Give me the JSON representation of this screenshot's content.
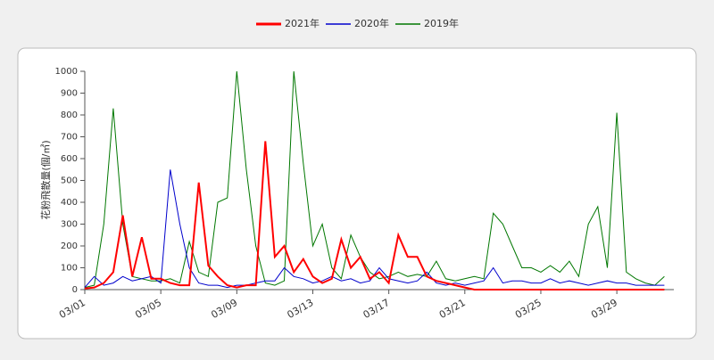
{
  "chart_data": {
    "type": "line",
    "y_label": "花粉飛散量(個/㎥)",
    "categories": [
      "03/01",
      null,
      null,
      null,
      null,
      null,
      null,
      null,
      "03/05",
      null,
      null,
      null,
      null,
      null,
      null,
      null,
      "03/09",
      null,
      null,
      null,
      null,
      null,
      null,
      null,
      "03/13",
      null,
      null,
      null,
      null,
      null,
      null,
      null,
      "03/17",
      null,
      null,
      null,
      null,
      null,
      null,
      null,
      "03/21",
      null,
      null,
      null,
      null,
      null,
      null,
      null,
      "03/25",
      null,
      null,
      null,
      null,
      null,
      null,
      null,
      "03/29",
      null,
      null,
      null,
      null,
      null
    ],
    "series": [
      {
        "name": "2021年",
        "color": "#ff0000",
        "values": [
          5,
          10,
          30,
          80,
          340,
          60,
          240,
          50,
          50,
          30,
          20,
          20,
          490,
          110,
          60,
          20,
          10,
          20,
          20,
          680,
          150,
          200,
          80,
          140,
          60,
          30,
          50,
          230,
          100,
          150,
          50,
          80,
          30,
          250,
          150,
          150,
          60,
          40,
          30,
          20,
          10,
          0,
          0,
          0,
          0,
          0,
          0,
          0,
          0,
          0,
          0,
          0,
          0,
          0,
          0,
          0,
          0,
          0,
          0,
          0,
          0,
          0
        ]
      },
      {
        "name": "2020年",
        "color": "#0000cc",
        "values": [
          10,
          60,
          20,
          30,
          60,
          40,
          50,
          60,
          30,
          550,
          300,
          100,
          30,
          20,
          20,
          10,
          20,
          20,
          30,
          40,
          40,
          100,
          60,
          50,
          30,
          40,
          60,
          40,
          50,
          30,
          40,
          100,
          50,
          40,
          30,
          40,
          80,
          30,
          20,
          30,
          20,
          30,
          40,
          100,
          30,
          40,
          40,
          30,
          30,
          50,
          30,
          40,
          30,
          20,
          30,
          40,
          30,
          30,
          20,
          20,
          20,
          20
        ]
      },
      {
        "name": "2019年",
        "color": "#007700",
        "values": [
          10,
          20,
          300,
          830,
          300,
          60,
          50,
          40,
          40,
          50,
          30,
          220,
          80,
          60,
          400,
          420,
          1000,
          550,
          200,
          30,
          20,
          40,
          1000,
          580,
          200,
          300,
          100,
          50,
          250,
          150,
          80,
          50,
          60,
          80,
          60,
          70,
          60,
          130,
          50,
          40,
          50,
          60,
          50,
          350,
          300,
          200,
          100,
          100,
          80,
          110,
          80,
          130,
          60,
          300,
          380,
          100,
          810,
          80,
          50,
          30,
          20,
          60
        ]
      }
    ],
    "ylim": [
      0,
      1000
    ],
    "yticks": [
      0,
      100,
      200,
      300,
      400,
      500,
      600,
      700,
      800,
      900,
      1000
    ]
  }
}
